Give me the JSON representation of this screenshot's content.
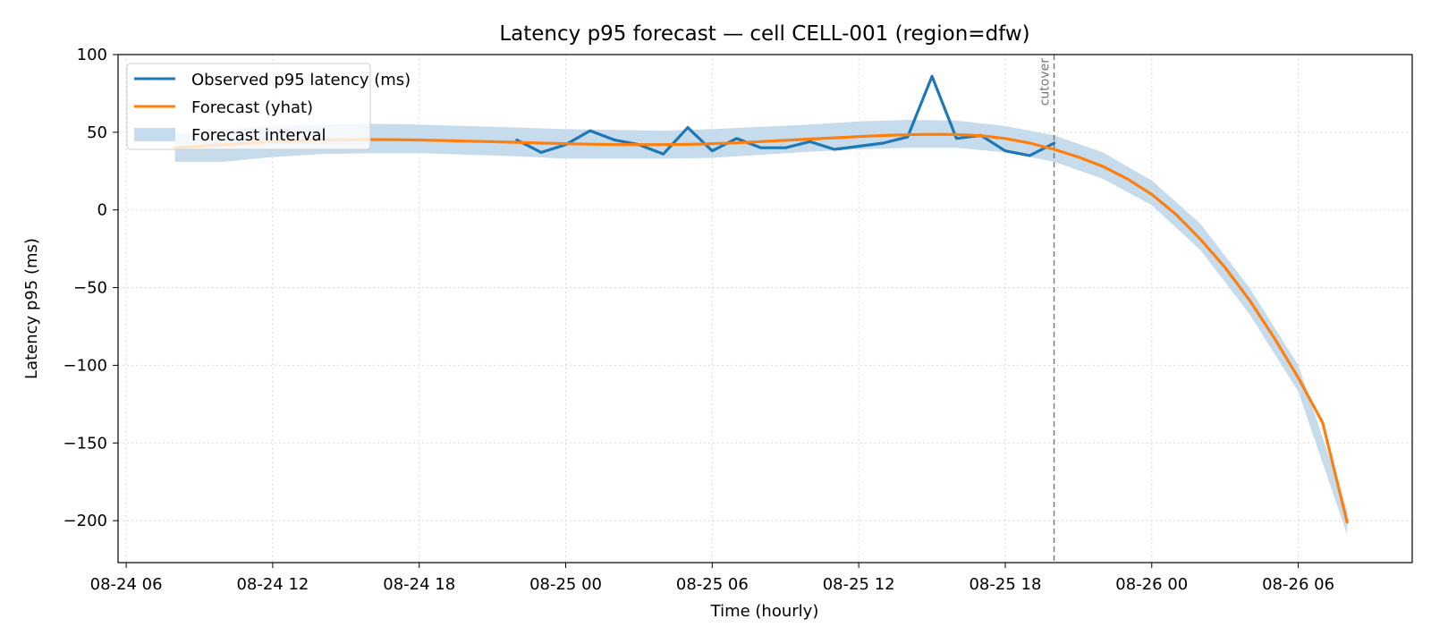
{
  "chart_data": {
    "type": "line",
    "title": "Latency p95 forecast — cell CELL-001 (region=dfw)",
    "xlabel": "Time (hourly)",
    "ylabel": "Latency p95 (ms)",
    "x_axis": "datetime",
    "xlim": [
      "2025-08-24 05:40",
      "2025-08-26 10:40"
    ],
    "ylim": [
      -227,
      100
    ],
    "x_ticks": [
      {
        "t": "2025-08-24 06:00",
        "label": "08-24 06"
      },
      {
        "t": "2025-08-24 12:00",
        "label": "08-24 12"
      },
      {
        "t": "2025-08-24 18:00",
        "label": "08-24 18"
      },
      {
        "t": "2025-08-25 00:00",
        "label": "08-25 00"
      },
      {
        "t": "2025-08-25 06:00",
        "label": "08-25 06"
      },
      {
        "t": "2025-08-25 12:00",
        "label": "08-25 12"
      },
      {
        "t": "2025-08-25 18:00",
        "label": "08-25 18"
      },
      {
        "t": "2025-08-26 00:00",
        "label": "08-26 00"
      },
      {
        "t": "2025-08-26 06:00",
        "label": "08-26 06"
      }
    ],
    "y_ticks": [
      {
        "v": 100,
        "label": "100"
      },
      {
        "v": 50,
        "label": "50"
      },
      {
        "v": 0,
        "label": "0"
      },
      {
        "v": -50,
        "label": "−50"
      },
      {
        "v": -100,
        "label": "−100"
      },
      {
        "v": -150,
        "label": "−150"
      },
      {
        "v": -200,
        "label": "−200"
      }
    ],
    "grid": true,
    "legend_position": "top-left",
    "cutover": {
      "t": "2025-08-25 20:00",
      "label": "cutover"
    },
    "colors": {
      "observed": "#1f77b4",
      "forecast": "#ff7f0e",
      "interval": "#c6dcec",
      "cutover": "#777777",
      "grid": "#d9d9d9"
    },
    "series": [
      {
        "name": "Observed p95 latency (ms)",
        "kind": "line",
        "x": [
          "2025-08-24 22:00",
          "2025-08-24 23:00",
          "2025-08-25 00:00",
          "2025-08-25 01:00",
          "2025-08-25 02:00",
          "2025-08-25 03:00",
          "2025-08-25 04:00",
          "2025-08-25 05:00",
          "2025-08-25 06:00",
          "2025-08-25 07:00",
          "2025-08-25 08:00",
          "2025-08-25 09:00",
          "2025-08-25 10:00",
          "2025-08-25 11:00",
          "2025-08-25 12:00",
          "2025-08-25 13:00",
          "2025-08-25 14:00",
          "2025-08-25 15:00",
          "2025-08-25 16:00",
          "2025-08-25 17:00",
          "2025-08-25 18:00",
          "2025-08-25 19:00",
          "2025-08-25 20:00"
        ],
        "y": [
          45,
          37,
          42,
          51,
          45,
          42,
          36,
          53,
          38,
          46,
          40,
          40,
          44,
          39,
          41,
          43,
          47,
          86,
          46,
          48,
          38,
          35,
          43
        ]
      },
      {
        "name": "Forecast (yhat)",
        "kind": "line",
        "x": [
          "2025-08-24 08:00",
          "2025-08-24 09:00",
          "2025-08-24 10:00",
          "2025-08-24 11:00",
          "2025-08-24 12:00",
          "2025-08-24 13:00",
          "2025-08-24 14:00",
          "2025-08-24 15:00",
          "2025-08-24 16:00",
          "2025-08-24 17:00",
          "2025-08-24 18:00",
          "2025-08-24 19:00",
          "2025-08-24 20:00",
          "2025-08-24 21:00",
          "2025-08-24 22:00",
          "2025-08-24 23:00",
          "2025-08-25 00:00",
          "2025-08-25 01:00",
          "2025-08-25 02:00",
          "2025-08-25 03:00",
          "2025-08-25 04:00",
          "2025-08-25 05:00",
          "2025-08-25 06:00",
          "2025-08-25 07:00",
          "2025-08-25 08:00",
          "2025-08-25 09:00",
          "2025-08-25 10:00",
          "2025-08-25 11:00",
          "2025-08-25 12:00",
          "2025-08-25 13:00",
          "2025-08-25 14:00",
          "2025-08-25 15:00",
          "2025-08-25 16:00",
          "2025-08-25 17:00",
          "2025-08-25 18:00",
          "2025-08-25 19:00",
          "2025-08-25 20:00",
          "2025-08-25 21:00",
          "2025-08-25 22:00",
          "2025-08-25 23:00",
          "2025-08-26 00:00",
          "2025-08-26 01:00",
          "2025-08-26 02:00",
          "2025-08-26 03:00",
          "2025-08-26 04:00",
          "2025-08-26 05:00",
          "2025-08-26 06:00",
          "2025-08-26 07:00",
          "2025-08-26 08:00"
        ],
        "y": [
          40,
          41,
          42,
          43,
          44,
          44.5,
          45,
          45.2,
          45.3,
          45.2,
          45,
          44.7,
          44.3,
          43.9,
          43.5,
          43,
          42.6,
          42.3,
          42.1,
          42,
          42,
          42.2,
          42.6,
          43.2,
          44,
          44.8,
          45.6,
          46.4,
          47.2,
          47.9,
          48.4,
          48.7,
          48.6,
          47.8,
          46,
          43,
          39,
          34,
          28,
          20,
          10,
          -3,
          -19,
          -37,
          -58,
          -82,
          -108,
          -137,
          -201
        ]
      },
      {
        "name": "Forecast interval",
        "kind": "band",
        "x": [
          "2025-08-24 08:00",
          "2025-08-24 10:00",
          "2025-08-24 12:00",
          "2025-08-24 14:00",
          "2025-08-24 16:00",
          "2025-08-24 18:00",
          "2025-08-24 20:00",
          "2025-08-24 22:00",
          "2025-08-25 00:00",
          "2025-08-25 02:00",
          "2025-08-25 04:00",
          "2025-08-25 06:00",
          "2025-08-25 08:00",
          "2025-08-25 10:00",
          "2025-08-25 12:00",
          "2025-08-25 14:00",
          "2025-08-25 16:00",
          "2025-08-25 18:00",
          "2025-08-25 20:00",
          "2025-08-25 22:00",
          "2025-08-26 00:00",
          "2025-08-26 02:00",
          "2025-08-26 04:00",
          "2025-08-26 06:00",
          "2025-08-26 08:00"
        ],
        "lower": [
          31,
          31,
          34,
          36,
          36.5,
          36.5,
          35.5,
          34.5,
          33,
          33,
          33,
          33.5,
          35.5,
          37.5,
          39,
          40,
          40,
          37,
          31,
          20,
          3,
          -26,
          -67,
          -117,
          -209
        ],
        "upper": [
          49,
          52,
          54,
          55,
          55.5,
          55,
          54,
          53,
          52,
          51.5,
          51,
          52,
          53.5,
          55,
          57,
          58,
          57.5,
          54,
          48,
          37,
          19,
          -9,
          -50,
          -100,
          -193
        ]
      }
    ]
  }
}
